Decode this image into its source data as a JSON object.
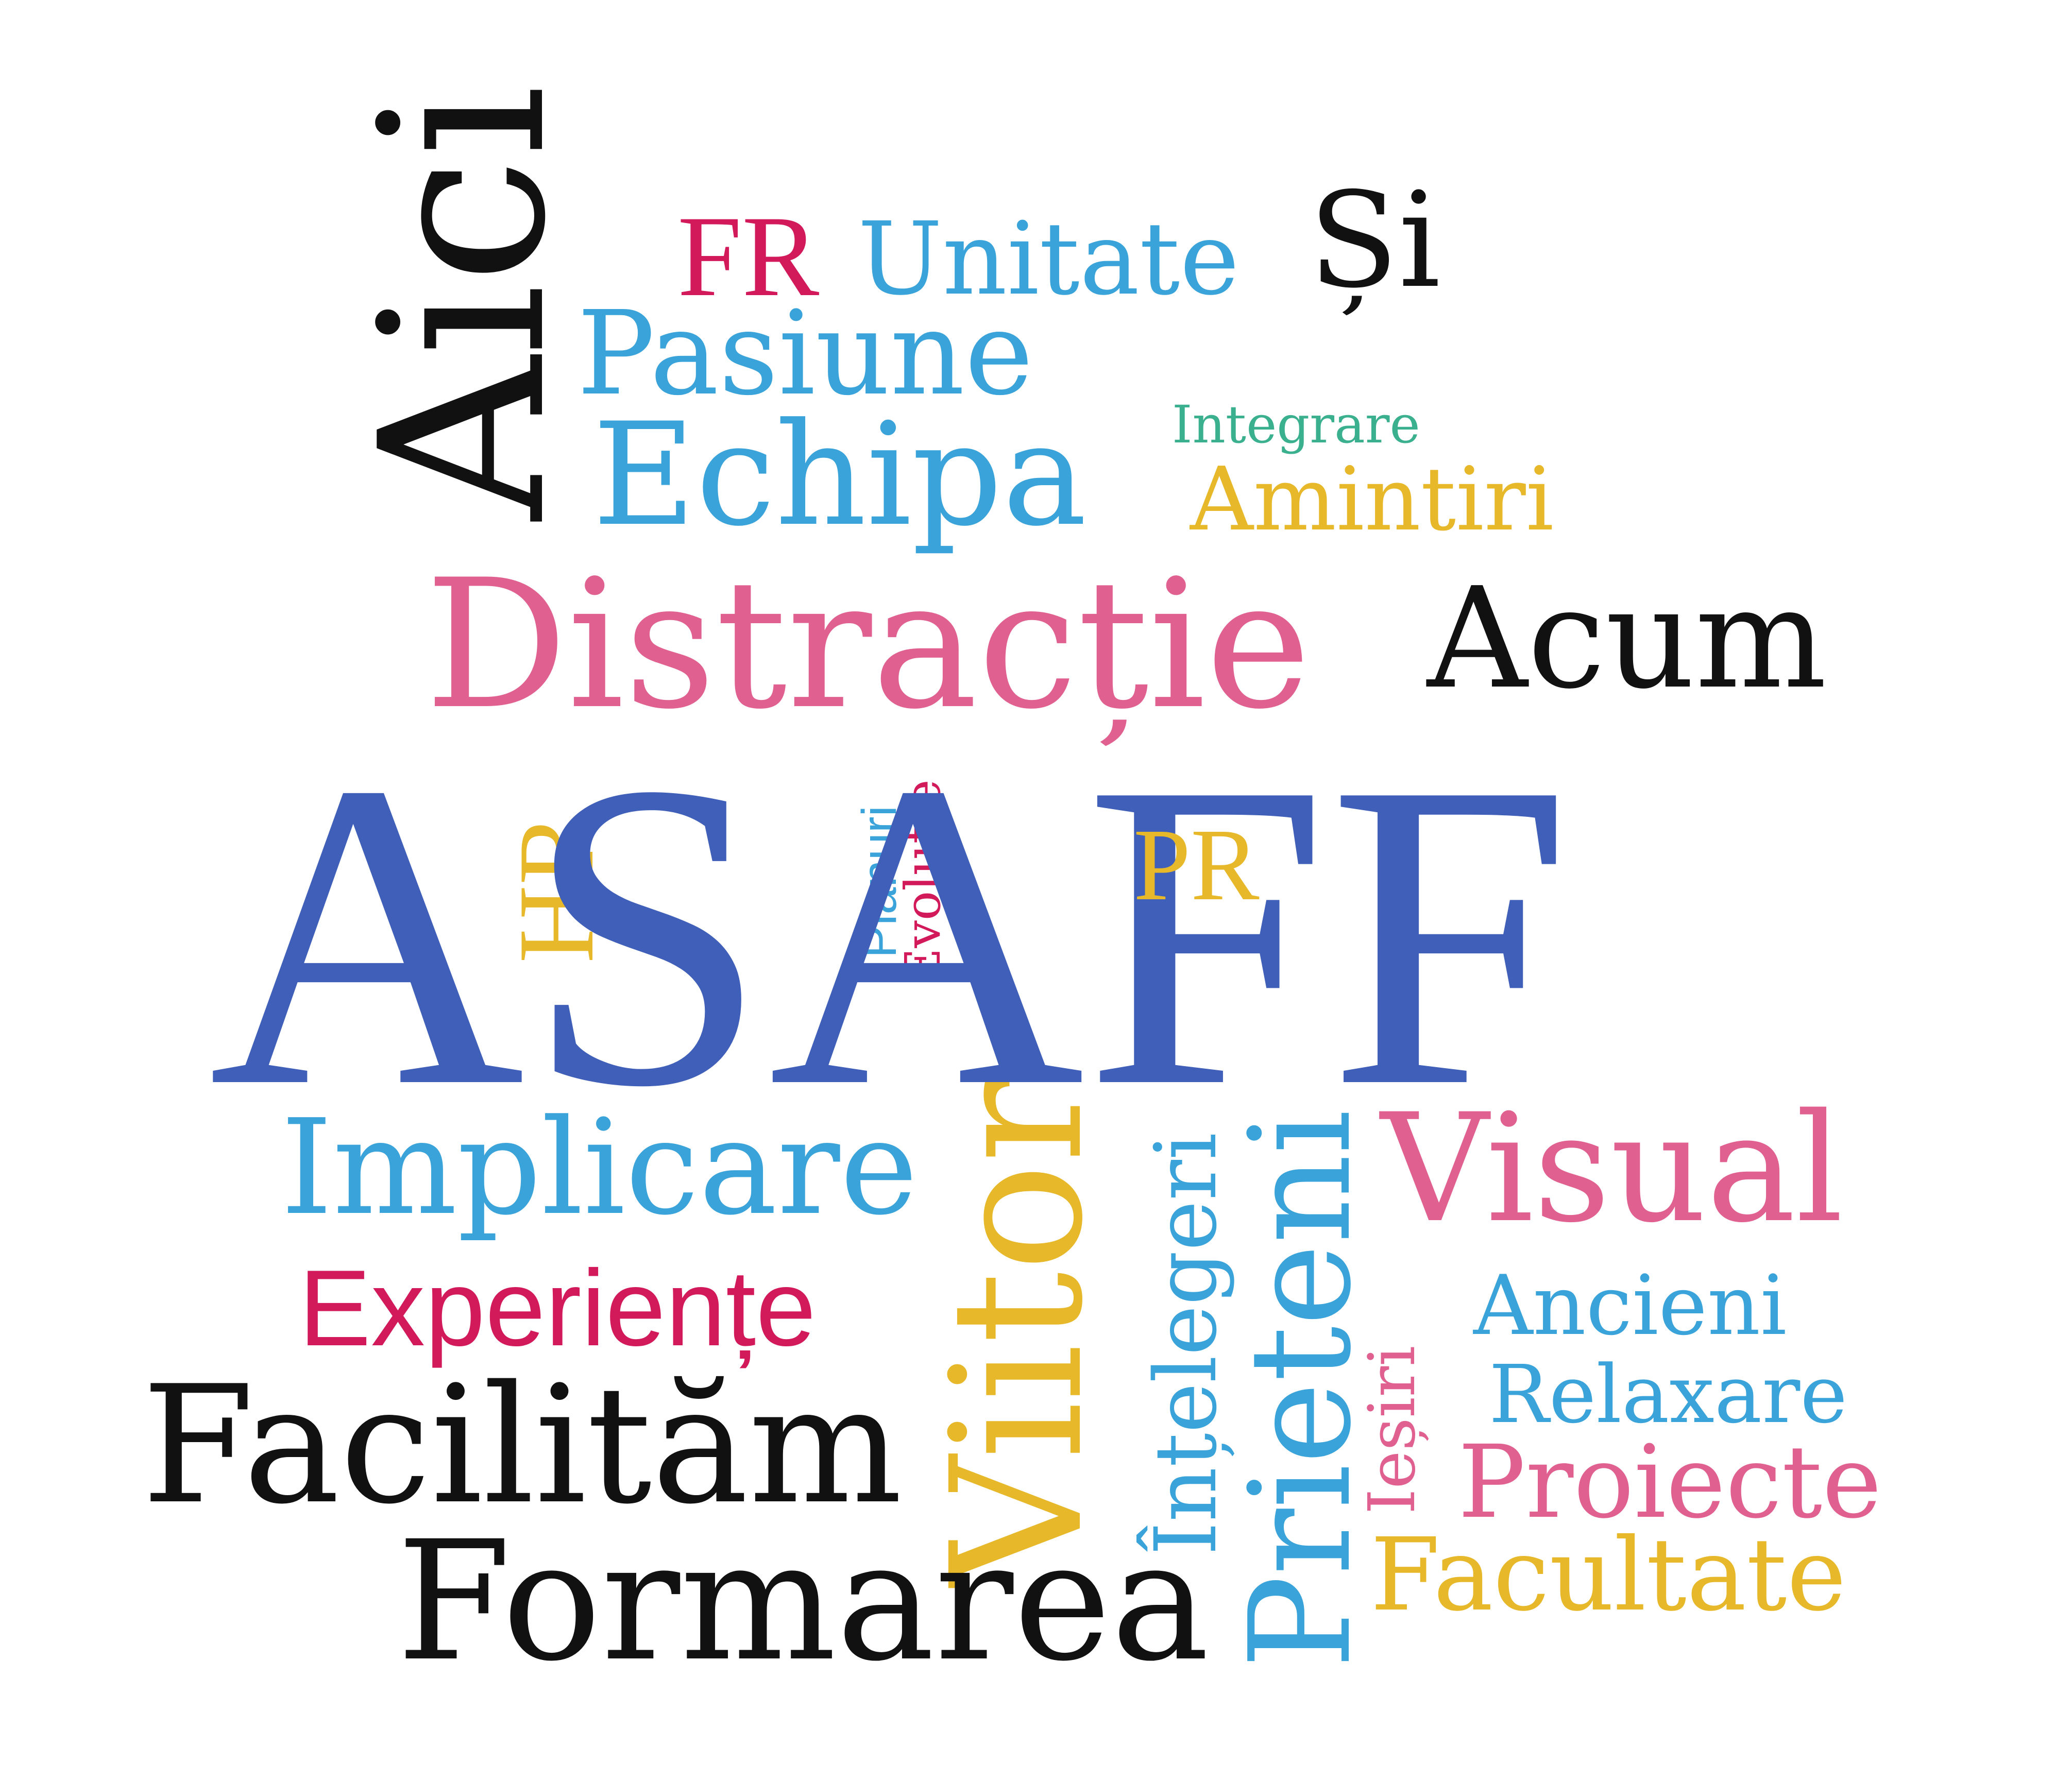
{
  "words": {
    "aici": "Aici",
    "fr": "FR",
    "unitate": "Unitate",
    "si": "Și",
    "pasiune": "Pasiune",
    "integrare": "Integrare",
    "echipa": "Echipa",
    "amintiri": "Amintiri",
    "distractie": "Distracție",
    "acum": "Acum",
    "asaff": "ASAFF",
    "hr": "HR",
    "planuri": "Planuri",
    "evolutie": "Evoluție",
    "pr": "PR",
    "implicare": "Implicare",
    "viitor": "Viitor",
    "intelegeri": "Înțelegeri",
    "prieteni": "Prieteni",
    "visual": "Visual",
    "experiente": "Experiențe",
    "iesiri": "Ieșiri",
    "ancieni": "Ancieni",
    "relaxare": "Relaxare",
    "facilitam": "Facilităm",
    "proiecte": "Proiecte",
    "formarea": "Formarea",
    "facultate": "Facultate"
  },
  "colors": {
    "black": "#111111",
    "blue": "#3f5fb8",
    "light_blue": "#3aa3d9",
    "pink": "#e0608f",
    "crimson": "#d2195a",
    "yellow": "#e6b82a",
    "green": "#3bb08f"
  }
}
